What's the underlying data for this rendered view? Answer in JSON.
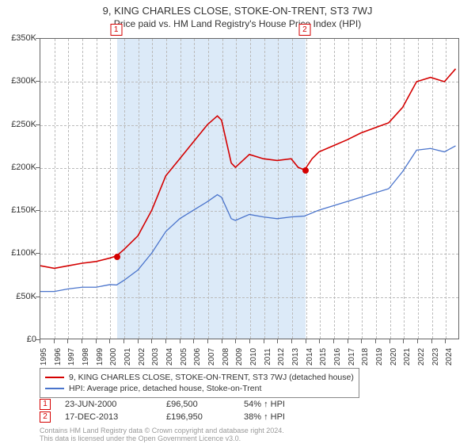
{
  "title": "9, KING CHARLES CLOSE, STOKE-ON-TRENT, ST3 7WJ",
  "subtitle": "Price paid vs. HM Land Registry's House Price Index (HPI)",
  "chart": {
    "type": "line",
    "background_color": "#ffffff",
    "grid_color": "#bbbbbb",
    "grid_dash": true,
    "axis_color": "#666666",
    "tick_fontsize": 11,
    "x_years": [
      1995,
      1996,
      1997,
      1998,
      1999,
      2000,
      2001,
      2002,
      2003,
      2004,
      2005,
      2006,
      2007,
      2008,
      2009,
      2010,
      2011,
      2012,
      2013,
      2014,
      2015,
      2016,
      2017,
      2018,
      2019,
      2020,
      2021,
      2022,
      2023,
      2024
    ],
    "x_end_year": 2025,
    "ylim": [
      0,
      350000
    ],
    "ytick_step": 50000,
    "ytick_labels": [
      "£0",
      "£50K",
      "£100K",
      "£150K",
      "£200K",
      "£250K",
      "£300K",
      "£350K"
    ],
    "shade_band": {
      "from_year": 2000.47,
      "to_year": 2013.96,
      "color": "#d6e6f7"
    },
    "series": [
      {
        "name": "price_paid",
        "label": "9, KING CHARLES CLOSE, STOKE-ON-TRENT, ST3 7WJ (detached house)",
        "color": "#d40000",
        "line_width": 1.6,
        "points": [
          [
            1995.0,
            85000
          ],
          [
            1996.0,
            82000
          ],
          [
            1997.0,
            85000
          ],
          [
            1998.0,
            88000
          ],
          [
            1999.0,
            90000
          ],
          [
            2000.0,
            94000
          ],
          [
            2000.47,
            96500
          ],
          [
            2001.0,
            104000
          ],
          [
            2002.0,
            120000
          ],
          [
            2003.0,
            150000
          ],
          [
            2004.0,
            190000
          ],
          [
            2005.0,
            210000
          ],
          [
            2006.0,
            230000
          ],
          [
            2007.0,
            250000
          ],
          [
            2007.7,
            260000
          ],
          [
            2008.0,
            255000
          ],
          [
            2008.7,
            205000
          ],
          [
            2009.0,
            200000
          ],
          [
            2010.0,
            215000
          ],
          [
            2011.0,
            210000
          ],
          [
            2012.0,
            208000
          ],
          [
            2013.0,
            210000
          ],
          [
            2013.5,
            200000
          ],
          [
            2013.96,
            196950
          ],
          [
            2014.5,
            210000
          ],
          [
            2015.0,
            218000
          ],
          [
            2016.0,
            225000
          ],
          [
            2017.0,
            232000
          ],
          [
            2018.0,
            240000
          ],
          [
            2019.0,
            246000
          ],
          [
            2020.0,
            252000
          ],
          [
            2021.0,
            270000
          ],
          [
            2022.0,
            300000
          ],
          [
            2023.0,
            305000
          ],
          [
            2024.0,
            300000
          ],
          [
            2024.8,
            315000
          ]
        ]
      },
      {
        "name": "hpi",
        "label": "HPI: Average price, detached house, Stoke-on-Trent",
        "color": "#4a74cc",
        "line_width": 1.3,
        "points": [
          [
            1995.0,
            55000
          ],
          [
            1996.0,
            55000
          ],
          [
            1997.0,
            58000
          ],
          [
            1998.0,
            60000
          ],
          [
            1999.0,
            60000
          ],
          [
            2000.0,
            63000
          ],
          [
            2000.47,
            62500
          ],
          [
            2001.0,
            68000
          ],
          [
            2002.0,
            80000
          ],
          [
            2003.0,
            100000
          ],
          [
            2004.0,
            125000
          ],
          [
            2005.0,
            140000
          ],
          [
            2006.0,
            150000
          ],
          [
            2007.0,
            160000
          ],
          [
            2007.7,
            168000
          ],
          [
            2008.0,
            165000
          ],
          [
            2008.7,
            140000
          ],
          [
            2009.0,
            138000
          ],
          [
            2010.0,
            145000
          ],
          [
            2011.0,
            142000
          ],
          [
            2012.0,
            140000
          ],
          [
            2013.0,
            142000
          ],
          [
            2013.96,
            143000
          ],
          [
            2015.0,
            150000
          ],
          [
            2016.0,
            155000
          ],
          [
            2017.0,
            160000
          ],
          [
            2018.0,
            165000
          ],
          [
            2019.0,
            170000
          ],
          [
            2020.0,
            175000
          ],
          [
            2021.0,
            195000
          ],
          [
            2022.0,
            220000
          ],
          [
            2023.0,
            222000
          ],
          [
            2024.0,
            218000
          ],
          [
            2024.8,
            225000
          ]
        ]
      }
    ],
    "sale_markers": [
      {
        "idx": "1",
        "year": 2000.47,
        "price": 96500,
        "color": "#d40000"
      },
      {
        "idx": "2",
        "year": 2013.96,
        "price": 196950,
        "color": "#d40000"
      }
    ]
  },
  "legend": {
    "items": [
      {
        "color": "#d40000",
        "label": "9, KING CHARLES CLOSE, STOKE-ON-TRENT, ST3 7WJ (detached house)"
      },
      {
        "color": "#4a74cc",
        "label": "HPI: Average price, detached house, Stoke-on-Trent"
      }
    ]
  },
  "sales": [
    {
      "idx": "1",
      "date": "23-JUN-2000",
      "price": "£96,500",
      "pct": "54% ↑ HPI",
      "color": "#d40000"
    },
    {
      "idx": "2",
      "date": "17-DEC-2013",
      "price": "£196,950",
      "pct": "38% ↑ HPI",
      "color": "#d40000"
    }
  ],
  "footnote": {
    "line1": "Contains HM Land Registry data © Crown copyright and database right 2024.",
    "line2": "This data is licensed under the Open Government Licence v3.0."
  }
}
